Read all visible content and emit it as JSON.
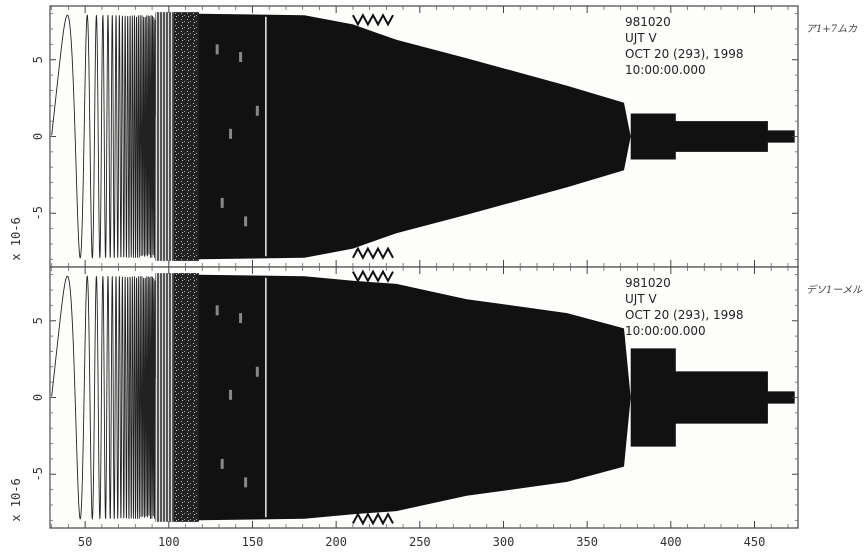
{
  "chart_data": {
    "type": "line",
    "x_ticks": [
      50,
      100,
      150,
      200,
      250,
      300,
      350,
      400,
      450
    ],
    "xlim": [
      29,
      476
    ],
    "panels": [
      {
        "id": "top",
        "ylabel": "x 10-6",
        "y_ticks": [
          5,
          0,
          -5
        ],
        "ylim": [
          -8.5,
          8.5
        ],
        "info": [
          "981020",
          "UJT    V",
          "OCT 20 (293), 1998",
          "10:00:00.000"
        ],
        "side_note": "ア1+7ムカ",
        "envelope": {
          "x": [
            30,
            118,
            118,
            181,
            181,
            210,
            210,
            236,
            236,
            278,
            278,
            338,
            338,
            372,
            372,
            376,
            376,
            403,
            403,
            458,
            458,
            474
          ],
          "amplitude": [
            8,
            8,
            8,
            7.9,
            7.9,
            7.3,
            7.3,
            6.3,
            6.3,
            5.1,
            5.1,
            3.3,
            3.3,
            2.2,
            2.2,
            0,
            1.5,
            1.5,
            1.0,
            1.0,
            0.4,
            0.4
          ]
        }
      },
      {
        "id": "bottom",
        "ylabel": "x 10-6",
        "y_ticks": [
          5,
          0,
          -5
        ],
        "ylim": [
          -8.5,
          8.5
        ],
        "info": [
          "981020",
          "UJT    V",
          "OCT 20 (293), 1998",
          "10:00:00.000"
        ],
        "side_note": "デソ1ーメル",
        "envelope": {
          "x": [
            30,
            118,
            118,
            181,
            181,
            210,
            210,
            236,
            236,
            278,
            278,
            338,
            338,
            372,
            372,
            376,
            376,
            403,
            403,
            458,
            458,
            474
          ],
          "amplitude": [
            8,
            8,
            8,
            7.9,
            7.9,
            7.6,
            7.6,
            7.4,
            7.4,
            6.4,
            6.4,
            5.5,
            5.5,
            4.5,
            4.5,
            0,
            3.2,
            3.2,
            1.7,
            1.7,
            0.4,
            0.4
          ]
        }
      }
    ]
  }
}
